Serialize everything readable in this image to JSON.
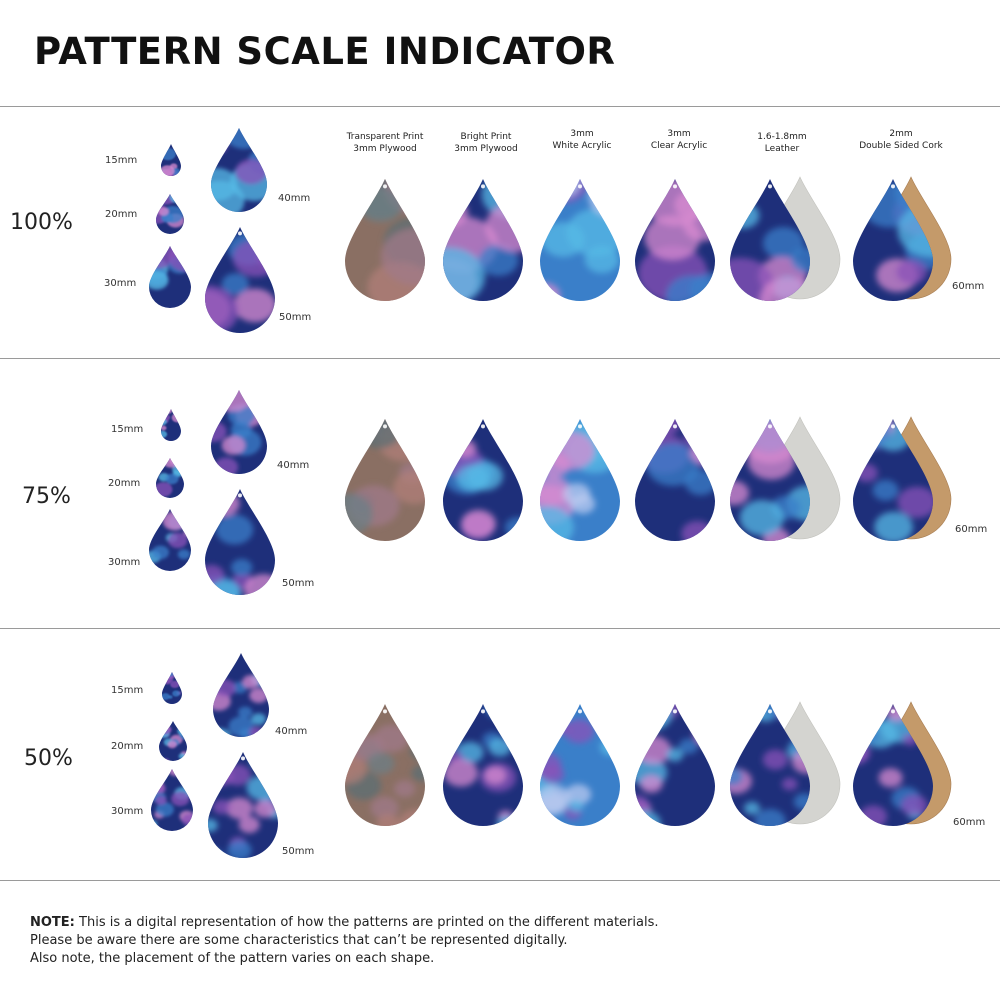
{
  "title": "PATTERN SCALE INDICATOR",
  "materials": [
    {
      "line1": "Transparent Print",
      "line2": "3mm Plywood"
    },
    {
      "line1": "Bright Print",
      "line2": "3mm Plywood"
    },
    {
      "line1": "3mm",
      "line2": "White Acrylic"
    },
    {
      "line1": "3mm",
      "line2": "Clear Acrylic"
    },
    {
      "line1": "1.6-1.8mm",
      "line2": "Leather"
    },
    {
      "line1": "2mm",
      "line2": "Double Sided Cork"
    }
  ],
  "sections": [
    {
      "scale": "100%",
      "sizes": {
        "s15": "15mm",
        "s20": "20mm",
        "s30": "30mm",
        "s40": "40mm",
        "s50": "50mm",
        "s60": "60mm"
      }
    },
    {
      "scale": "75%",
      "sizes": {
        "s15": "15mm",
        "s20": "20mm",
        "s30": "30mm",
        "s40": "40mm",
        "s50": "50mm",
        "s60": "60mm"
      }
    },
    {
      "scale": "50%",
      "sizes": {
        "s15": "15mm",
        "s20": "20mm",
        "s30": "30mm",
        "s40": "40mm",
        "s50": "50mm",
        "s60": "60mm"
      }
    }
  ],
  "note": {
    "label": "NOTE:",
    "line1": " This is a digital representation of how the patterns are printed on the different materials.",
    "line2": "Please be aware there are some characteristics that can’t be represented digitally.",
    "line3": "Also note, the placement of the pattern varies on each shape."
  },
  "colors": {
    "blue": "#3a7fc9",
    "purple": "#8a52b8",
    "pink": "#d88bd0",
    "navy": "#1e2f7a",
    "cyan": "#55b9e6",
    "wood": "#8a6f63",
    "cork": "#c49a6a",
    "suede": "#d4d4d0"
  },
  "icons": [
    "teardrop-swatch-icon",
    "cork-backing-icon",
    "suede-backing-icon"
  ]
}
